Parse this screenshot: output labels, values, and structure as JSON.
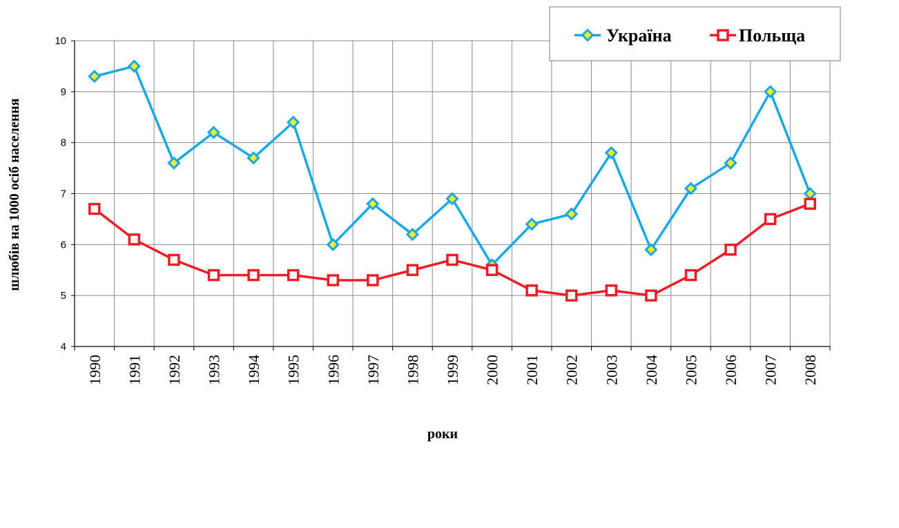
{
  "chart_data": {
    "type": "line",
    "title": "",
    "xlabel": "роки",
    "ylabel": "шлюбів на 1000 осіб населення",
    "ylim": [
      4,
      10
    ],
    "yticks": [
      "4",
      "5",
      "6",
      "7",
      "8",
      "9",
      "10"
    ],
    "grid": true,
    "legend_position": "top-right",
    "categories": [
      "1990",
      "1991",
      "1992",
      "1993",
      "1994",
      "1995",
      "1996",
      "1997",
      "1998",
      "1999",
      "2000",
      "2001",
      "2002",
      "2003",
      "2004",
      "2005",
      "2006",
      "2007",
      "2008"
    ],
    "series": [
      {
        "name": "Україна",
        "color": "#19a8e6",
        "marker": "diamond",
        "marker_fill": "#f4ec2a",
        "values": [
          9.3,
          9.5,
          7.6,
          8.2,
          7.7,
          8.4,
          6.0,
          6.8,
          6.2,
          6.9,
          5.6,
          6.4,
          6.6,
          7.8,
          5.9,
          7.1,
          7.6,
          9.0,
          7.0
        ]
      },
      {
        "name": "Польща",
        "color": "#ee1c24",
        "marker": "square",
        "marker_fill": "#ffffff",
        "values": [
          6.7,
          6.1,
          5.7,
          5.4,
          5.4,
          5.4,
          5.3,
          5.3,
          5.5,
          5.7,
          5.5,
          5.1,
          5.0,
          5.1,
          5.0,
          5.4,
          5.9,
          6.5,
          6.8
        ]
      }
    ]
  }
}
